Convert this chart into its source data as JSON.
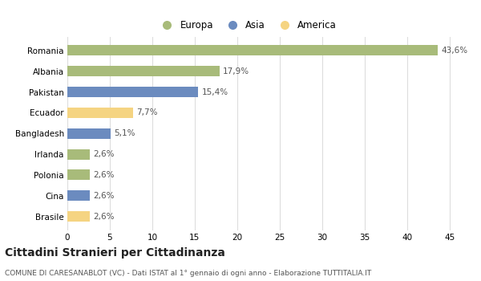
{
  "categories": [
    "Brasile",
    "Cina",
    "Polonia",
    "Irlanda",
    "Bangladesh",
    "Ecuador",
    "Pakistan",
    "Albania",
    "Romania"
  ],
  "values": [
    2.6,
    2.6,
    2.6,
    2.6,
    5.1,
    7.7,
    15.4,
    17.9,
    43.6
  ],
  "labels": [
    "2,6%",
    "2,6%",
    "2,6%",
    "2,6%",
    "5,1%",
    "7,7%",
    "15,4%",
    "17,9%",
    "43,6%"
  ],
  "colors": [
    "#f5d482",
    "#6b8bbf",
    "#a8bb7a",
    "#a8bb7a",
    "#6b8bbf",
    "#f5d482",
    "#6b8bbf",
    "#a8bb7a",
    "#a8bb7a"
  ],
  "continent": [
    "America",
    "Asia",
    "Europa",
    "Europa",
    "Asia",
    "America",
    "Asia",
    "Europa",
    "Europa"
  ],
  "legend_labels": [
    "Europa",
    "Asia",
    "America"
  ],
  "legend_colors": [
    "#a8bb7a",
    "#6b8bbf",
    "#f5d482"
  ],
  "title": "Cittadini Stranieri per Cittadinanza",
  "subtitle": "COMUNE DI CARESANABLOT (VC) - Dati ISTAT al 1° gennaio di ogni anno - Elaborazione TUTTITALIA.IT",
  "xlim": [
    0,
    47
  ],
  "xticks": [
    0,
    5,
    10,
    15,
    20,
    25,
    30,
    35,
    40,
    45
  ],
  "background_color": "#ffffff",
  "grid_color": "#dddddd",
  "bar_height": 0.5
}
